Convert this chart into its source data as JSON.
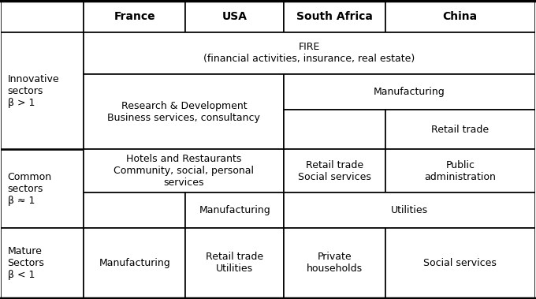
{
  "title": "",
  "col_headers": [
    "France",
    "USA",
    "South Africa",
    "China"
  ],
  "row_headers": [
    "Innovative\nsectors\nβ > 1",
    "Common\nsectors\nβ ≈ 1",
    "Mature\nSectors\nβ < 1"
  ],
  "bg_color": "#ffffff",
  "line_color": "#000000",
  "font_size": 9,
  "header_font_size": 10,
  "cells": {
    "fire_row": "FIRE\n(financial activities, insurance, real estate)",
    "rd_cell": "Research & Development\nBusiness services, consultancy",
    "manufacturing_sa": "Manufacturing",
    "retail_china": "Retail trade",
    "hotels_cell": "Hotels and Restaurants\nCommunity, social, personal\nservices",
    "retail_social_sa": "Retail trade\nSocial services",
    "public_admin_china": "Public\nadministration",
    "manufacturing_usa": "Manufacturing",
    "utilities_sa_china": "Utilities",
    "manufacturing_fr": "Manufacturing",
    "retail_utilities_usa": "Retail trade\nUtilities",
    "private_households_sa": "Private\nhouseholds",
    "social_services_china": "Social services"
  }
}
